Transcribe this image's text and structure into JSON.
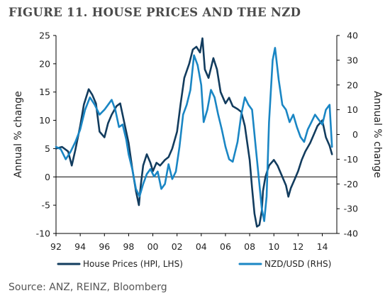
{
  "header": {
    "title": "FIGURE 11. HOUSE PRICES AND THE NZD"
  },
  "footer": {
    "source": "Source: ANZ, REINZ, Bloomberg"
  },
  "colors": {
    "house": "#123c5e",
    "nzd": "#1a86c4",
    "axis": "#000000"
  },
  "chart_data": {
    "type": "line",
    "title": "",
    "xlabel": "",
    "ylabel": "Annual % change",
    "y2label": "Annual % change",
    "xlim": [
      1992,
      2015.2
    ],
    "ylim": [
      -10,
      25
    ],
    "y2lim": [
      -40,
      40
    ],
    "xticks": [
      1992,
      1994,
      1996,
      1998,
      2000,
      2002,
      2004,
      2006,
      2008,
      2010,
      2012,
      2014
    ],
    "xtick_labels": [
      "92",
      "94",
      "96",
      "98",
      "00",
      "02",
      "04",
      "06",
      "08",
      "10",
      "12",
      "14"
    ],
    "yticks": [
      -10,
      -5,
      0,
      5,
      10,
      15,
      20,
      25
    ],
    "y2ticks": [
      -40,
      -30,
      -20,
      -10,
      0,
      10,
      20,
      30,
      40
    ],
    "grid": false,
    "zero_line": true,
    "legend_position": "bottom",
    "series": [
      {
        "name": "House Prices (HPI, LHS)",
        "axis": "left",
        "color": "#123c5e",
        "x": [
          1992.0,
          1992.5,
          1993.0,
          1993.3,
          1993.6,
          1994.0,
          1994.3,
          1994.7,
          1995.0,
          1995.3,
          1995.6,
          1996.0,
          1996.3,
          1996.6,
          1997.0,
          1997.3,
          1997.6,
          1998.0,
          1998.3,
          1998.6,
          1998.85,
          1999.0,
          1999.2,
          1999.5,
          1999.8,
          2000.0,
          2000.3,
          2000.6,
          2001.0,
          2001.3,
          2001.6,
          2002.0,
          2002.3,
          2002.6,
          2003.0,
          2003.3,
          2003.6,
          2003.9,
          2004.1,
          2004.3,
          2004.6,
          2005.0,
          2005.3,
          2005.6,
          2006.0,
          2006.3,
          2006.6,
          2007.0,
          2007.3,
          2007.6,
          2008.0,
          2008.2,
          2008.4,
          2008.6,
          2008.8,
          2009.0,
          2009.1,
          2009.3,
          2009.6,
          2010.0,
          2010.3,
          2010.6,
          2011.0,
          2011.2,
          2011.4,
          2011.7,
          2012.0,
          2012.3,
          2012.6,
          2013.0,
          2013.3,
          2013.6,
          2014.0,
          2014.3,
          2014.6,
          2014.8
        ],
        "y": [
          5.0,
          5.3,
          4.5,
          2.0,
          4.8,
          9.0,
          12.8,
          15.5,
          14.5,
          13.0,
          8.0,
          7.0,
          9.5,
          11.0,
          12.5,
          13.0,
          10.0,
          6.0,
          1.5,
          -2.5,
          -5.0,
          -1.5,
          2.0,
          4.0,
          2.5,
          1.0,
          2.5,
          2.0,
          3.0,
          3.5,
          5.0,
          8.0,
          13.0,
          17.5,
          20.0,
          22.5,
          23.0,
          22.0,
          24.5,
          19.0,
          17.5,
          21.0,
          19.0,
          15.0,
          13.0,
          14.0,
          12.5,
          12.0,
          11.5,
          9.0,
          3.0,
          -2.0,
          -6.5,
          -8.8,
          -8.5,
          -6.0,
          -2.5,
          0.0,
          2.0,
          3.0,
          2.0,
          0.5,
          -1.5,
          -3.5,
          -2.0,
          -0.5,
          1.0,
          3.0,
          4.5,
          6.0,
          7.5,
          9.0,
          10.0,
          7.0,
          5.5,
          4.0
        ]
      },
      {
        "name": "NZD/USD (RHS)",
        "axis": "right",
        "color": "#1a86c4",
        "x": [
          1992.0,
          1992.4,
          1992.8,
          1993.2,
          1993.6,
          1994.0,
          1994.4,
          1994.8,
          1995.2,
          1995.6,
          1996.0,
          1996.3,
          1996.6,
          1996.9,
          1997.2,
          1997.5,
          1997.8,
          1998.0,
          1998.3,
          1998.6,
          1998.9,
          1999.2,
          1999.5,
          1999.8,
          2000.1,
          2000.4,
          2000.7,
          2001.0,
          2001.3,
          2001.6,
          2001.9,
          2002.2,
          2002.5,
          2002.8,
          2003.1,
          2003.4,
          2003.7,
          2004.0,
          2004.2,
          2004.5,
          2004.8,
          2005.1,
          2005.4,
          2005.7,
          2006.0,
          2006.3,
          2006.6,
          2007.0,
          2007.3,
          2007.6,
          2007.9,
          2008.2,
          2008.5,
          2008.8,
          2009.0,
          2009.2,
          2009.4,
          2009.6,
          2009.9,
          2010.1,
          2010.4,
          2010.7,
          2011.0,
          2011.3,
          2011.6,
          2011.9,
          2012.2,
          2012.5,
          2012.8,
          2013.1,
          2013.4,
          2013.7,
          2014.0,
          2014.3,
          2014.6,
          2014.8
        ],
        "y": [
          -5.0,
          -6.0,
          -10.0,
          -7.0,
          -3.0,
          2.0,
          10.0,
          15.0,
          12.0,
          8.0,
          10.0,
          12.0,
          14.0,
          10.0,
          3.0,
          4.0,
          -2.0,
          -8.0,
          -14.0,
          -22.0,
          -25.0,
          -20.0,
          -16.0,
          -14.0,
          -17.0,
          -15.0,
          -22.0,
          -20.0,
          -12.0,
          -18.0,
          -15.0,
          -5.0,
          8.0,
          12.0,
          18.0,
          32.0,
          28.0,
          20.0,
          5.0,
          10.0,
          18.0,
          15.0,
          8.0,
          2.0,
          -5.0,
          -10.0,
          -11.0,
          -3.0,
          8.0,
          15.0,
          12.0,
          10.0,
          -5.0,
          -20.0,
          -30.0,
          -35.0,
          -25.0,
          5.0,
          30.0,
          35.0,
          22.0,
          12.0,
          10.0,
          5.0,
          8.0,
          3.0,
          -1.0,
          -3.0,
          2.0,
          5.0,
          8.0,
          6.0,
          4.0,
          10.0,
          12.0,
          -5.0
        ]
      }
    ]
  }
}
